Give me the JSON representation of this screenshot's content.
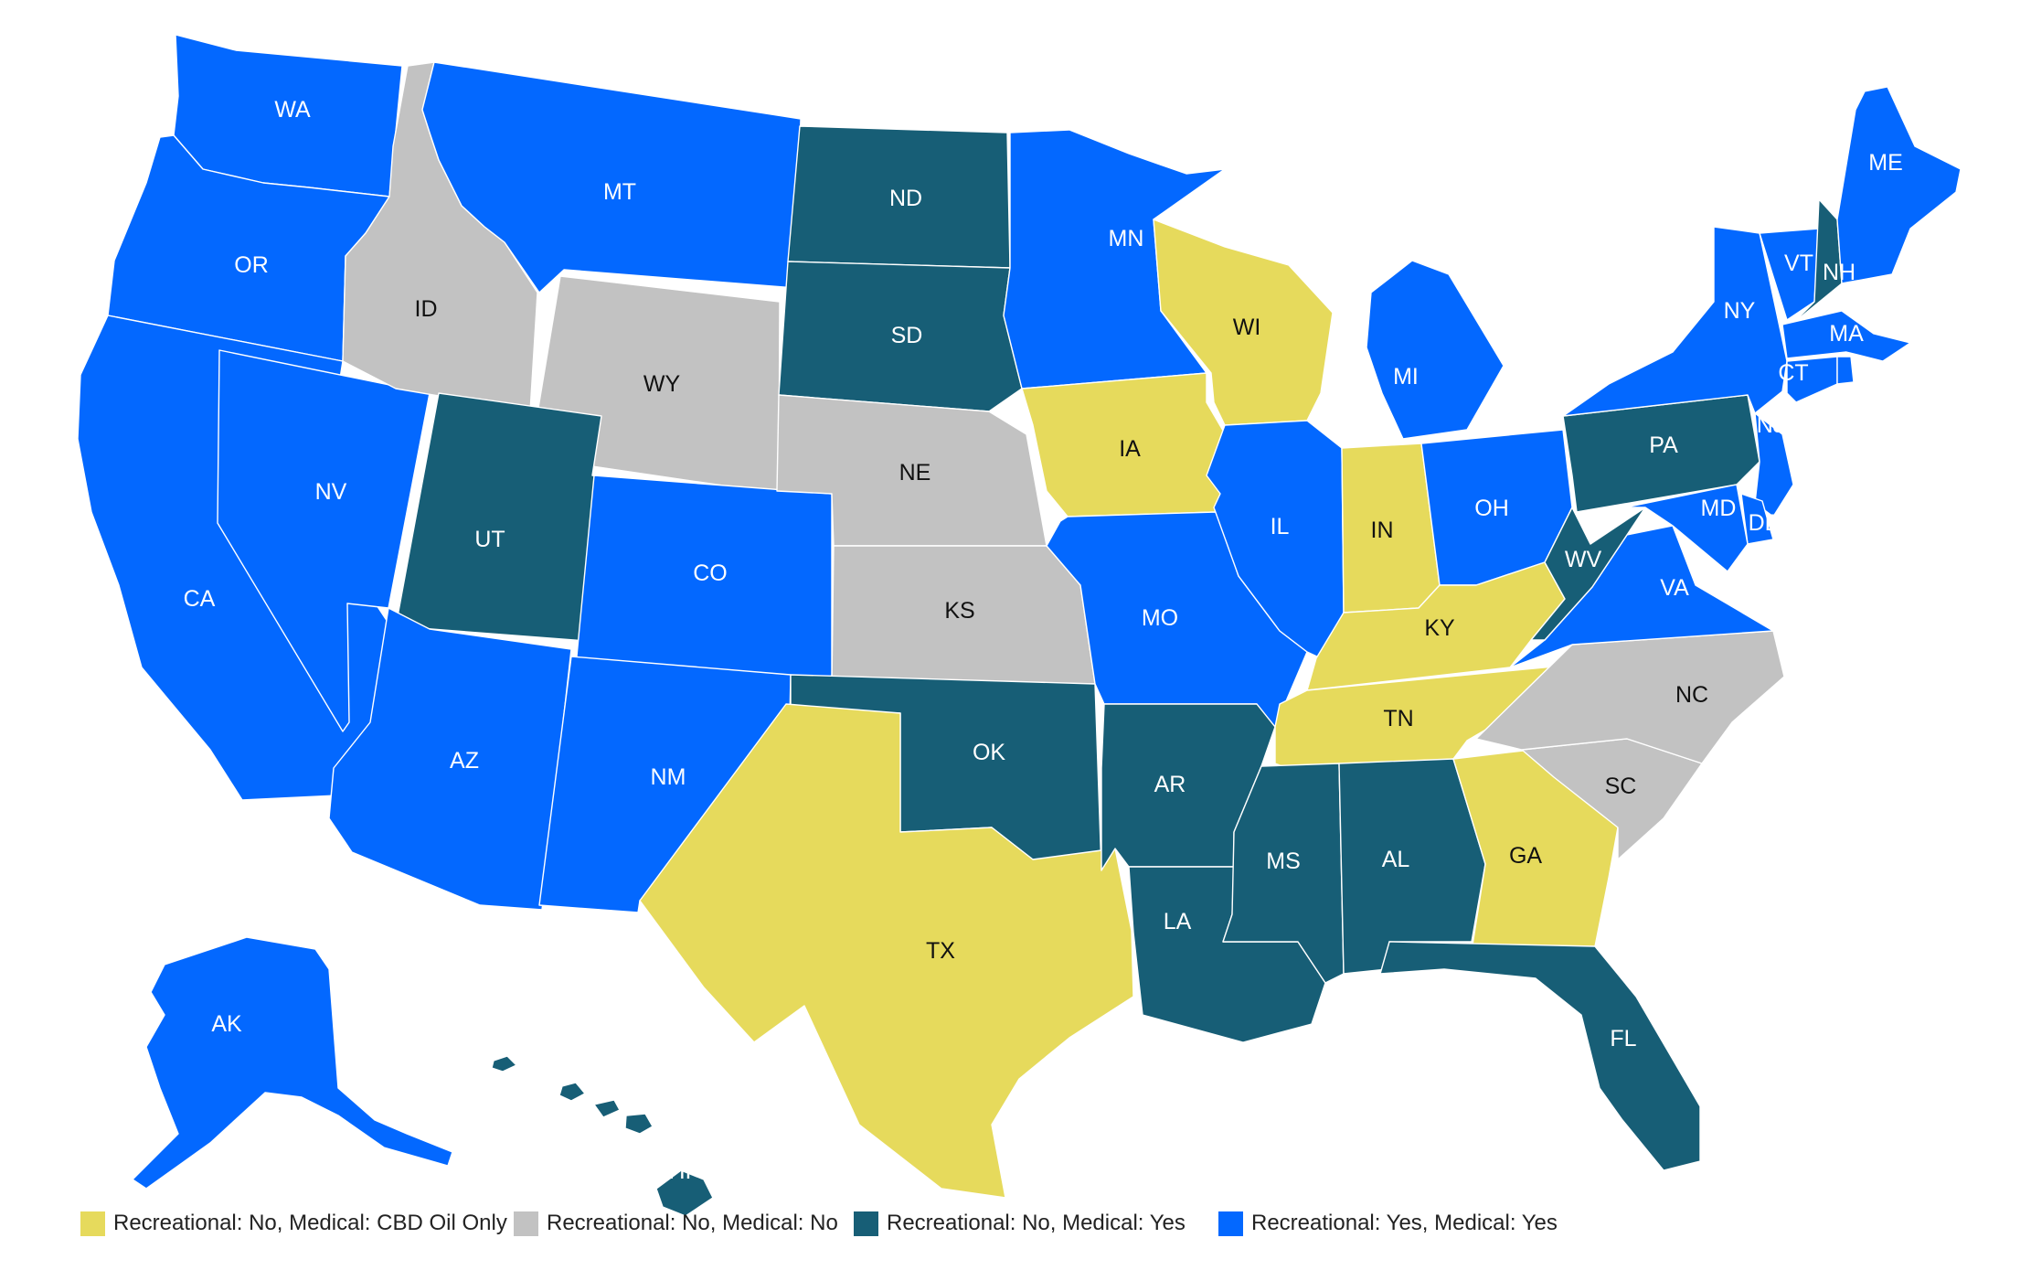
{
  "colors": {
    "cbd_only": "#e6da5c",
    "none": "#c2c2c2",
    "medical": "#175e76",
    "both": "#0368ff"
  },
  "legend": [
    {
      "key": "cbd_only",
      "label": "Recreational: No, Medical: CBD Oil Only"
    },
    {
      "key": "none",
      "label": "Recreational: No, Medical: No"
    },
    {
      "key": "medical",
      "label": "Recreational: No, Medical: Yes"
    },
    {
      "key": "both",
      "label": "Recreational: Yes, Medical: Yes"
    }
  ],
  "states": [
    {
      "code": "WA",
      "category": "both"
    },
    {
      "code": "OR",
      "category": "both"
    },
    {
      "code": "CA",
      "category": "both"
    },
    {
      "code": "NV",
      "category": "both"
    },
    {
      "code": "ID",
      "category": "none"
    },
    {
      "code": "MT",
      "category": "both"
    },
    {
      "code": "WY",
      "category": "none"
    },
    {
      "code": "UT",
      "category": "medical"
    },
    {
      "code": "AZ",
      "category": "both"
    },
    {
      "code": "CO",
      "category": "both"
    },
    {
      "code": "NM",
      "category": "both"
    },
    {
      "code": "ND",
      "category": "medical"
    },
    {
      "code": "SD",
      "category": "medical"
    },
    {
      "code": "NE",
      "category": "none"
    },
    {
      "code": "KS",
      "category": "none"
    },
    {
      "code": "OK",
      "category": "medical"
    },
    {
      "code": "TX",
      "category": "cbd_only"
    },
    {
      "code": "MN",
      "category": "both"
    },
    {
      "code": "IA",
      "category": "cbd_only"
    },
    {
      "code": "MO",
      "category": "both"
    },
    {
      "code": "AR",
      "category": "medical"
    },
    {
      "code": "LA",
      "category": "medical"
    },
    {
      "code": "WI",
      "category": "cbd_only"
    },
    {
      "code": "IL",
      "category": "both"
    },
    {
      "code": "MI",
      "category": "both"
    },
    {
      "code": "IN",
      "category": "cbd_only"
    },
    {
      "code": "OH",
      "category": "both"
    },
    {
      "code": "KY",
      "category": "cbd_only"
    },
    {
      "code": "TN",
      "category": "cbd_only"
    },
    {
      "code": "MS",
      "category": "medical"
    },
    {
      "code": "AL",
      "category": "medical"
    },
    {
      "code": "GA",
      "category": "cbd_only"
    },
    {
      "code": "FL",
      "category": "medical"
    },
    {
      "code": "SC",
      "category": "none"
    },
    {
      "code": "NC",
      "category": "none"
    },
    {
      "code": "VA",
      "category": "both"
    },
    {
      "code": "WV",
      "category": "medical"
    },
    {
      "code": "PA",
      "category": "medical"
    },
    {
      "code": "NY",
      "category": "both"
    },
    {
      "code": "VT",
      "category": "both"
    },
    {
      "code": "NH",
      "category": "medical"
    },
    {
      "code": "ME",
      "category": "both"
    },
    {
      "code": "MA",
      "category": "both"
    },
    {
      "code": "CT",
      "category": "both"
    },
    {
      "code": "RI",
      "category": "both"
    },
    {
      "code": "NJ",
      "category": "both"
    },
    {
      "code": "DE",
      "category": "both"
    },
    {
      "code": "MD",
      "category": "both"
    },
    {
      "code": "AK",
      "category": "both"
    },
    {
      "code": "HI",
      "category": "medical"
    }
  ]
}
